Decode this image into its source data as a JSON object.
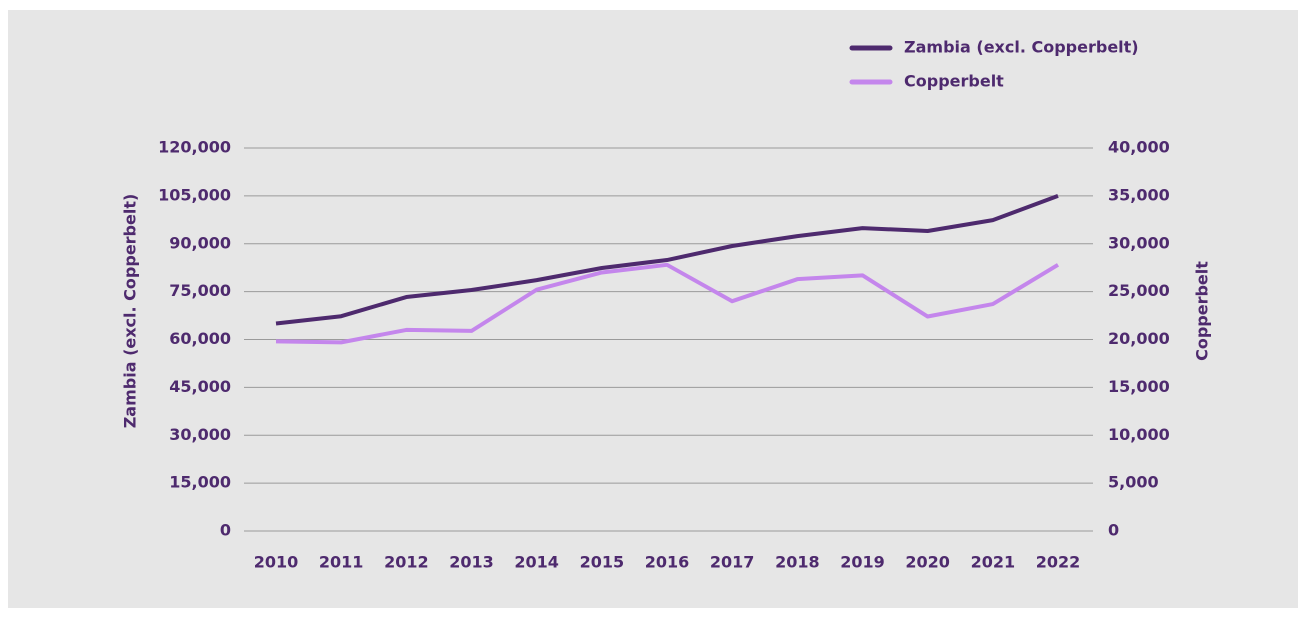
{
  "chart_data": {
    "type": "line",
    "x": [
      2010,
      2011,
      2012,
      2013,
      2014,
      2015,
      2016,
      2017,
      2018,
      2019,
      2020,
      2021,
      2022
    ],
    "ylabel": "Zambia (excl. Copperbelt)",
    "y2label": "Copperbelt",
    "series": [
      {
        "name": "Zambia (excl. Copperbelt)",
        "color": "#4e2a6e",
        "values": [
          65000,
          67300,
          73300,
          75500,
          78600,
          82400,
          84900,
          89300,
          92400,
          94900,
          94000,
          97400,
          105000
        ]
      },
      {
        "name": "Copperbelt",
        "color": "#c486ec",
        "axis": "y2",
        "values": [
          19800,
          19700,
          21000,
          20900,
          25200,
          27000,
          27800,
          24000,
          26300,
          26700,
          22400,
          23700,
          27800
        ]
      }
    ],
    "ylim": [
      0,
      120000
    ],
    "yticks": [
      0,
      {
        "value": 15000,
        "label": "15,000"
      },
      {
        "value": 30000,
        "label": "30,000"
      },
      {
        "value": 45000,
        "label": "45,000"
      },
      {
        "value": 60000,
        "label": "60,000"
      },
      {
        "value": 75000,
        "label": "75,000"
      },
      {
        "value": 90000,
        "label": "90,000"
      },
      {
        "value": 105000,
        "label": "105,000"
      },
      {
        "value": 120000,
        "label": "120,000"
      }
    ],
    "y2lim": [
      0,
      40000
    ],
    "y2ticks": [
      0,
      {
        "value": 5000,
        "label": "5,000"
      },
      {
        "value": 10000,
        "label": "10,000"
      },
      {
        "value": 15000,
        "label": "15,000"
      },
      {
        "value": 20000,
        "label": "20,000"
      },
      {
        "value": 25000,
        "label": "25,000"
      },
      {
        "value": 30000,
        "label": "30,000"
      },
      {
        "value": 35000,
        "label": "35,000"
      },
      {
        "value": 40000,
        "label": "40,000"
      }
    ],
    "grid": true,
    "legend": "top-right"
  }
}
